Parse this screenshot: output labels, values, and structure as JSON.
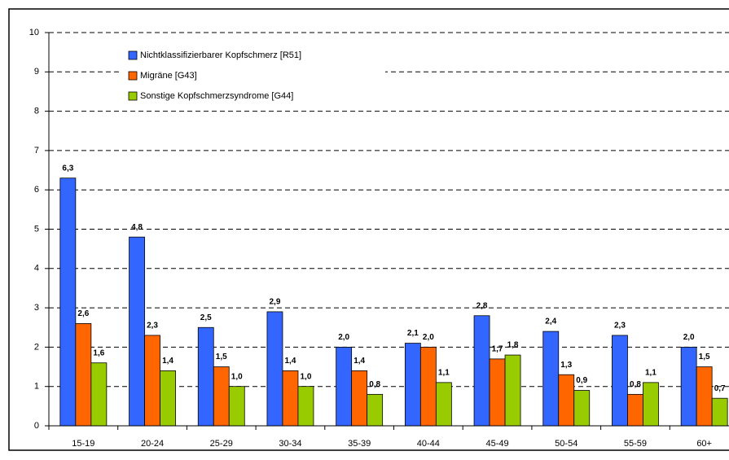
{
  "chart_data": {
    "type": "bar",
    "categories": [
      "15-19",
      "20-24",
      "25-29",
      "30-34",
      "35-39",
      "40-44",
      "45-49",
      "50-54",
      "55-59",
      "60+"
    ],
    "series": [
      {
        "name": "Nichtklassifizierbarer Kopfschmerz [R51]",
        "color": "#3366ff",
        "values": [
          6.3,
          4.8,
          2.5,
          2.9,
          2.0,
          2.1,
          2.8,
          2.4,
          2.3,
          2.0
        ],
        "value_labels": [
          "6,3",
          "4,8",
          "2,5",
          "2,9",
          "2,0",
          "2,1",
          "2,8",
          "2,4",
          "2,3",
          "2,0"
        ]
      },
      {
        "name": "Migräne [G43]",
        "color": "#ff6600",
        "values": [
          2.6,
          2.3,
          1.5,
          1.4,
          1.4,
          2.0,
          1.7,
          1.3,
          0.8,
          1.5
        ],
        "value_labels": [
          "2,6",
          "2,3",
          "1,5",
          "1,4",
          "1,4",
          "2,0",
          "1,7",
          "1,3",
          "0,8",
          "1,5"
        ]
      },
      {
        "name": "Sonstige Kopfschmerzsyndrome [G44]",
        "color": "#99cc00",
        "values": [
          1.6,
          1.4,
          1.0,
          1.0,
          0.8,
          1.1,
          1.8,
          0.9,
          1.1,
          0.7
        ],
        "value_labels": [
          "1,6",
          "1,4",
          "1,0",
          "1,0",
          "0,8",
          "1,1",
          "1,8",
          "0,9",
          "1,1",
          "0,7"
        ]
      }
    ],
    "ylim": [
      0,
      10
    ],
    "yticks": [
      0,
      1,
      2,
      3,
      4,
      5,
      6,
      7,
      8,
      9,
      10
    ],
    "grid": true,
    "legend": "top-left"
  }
}
